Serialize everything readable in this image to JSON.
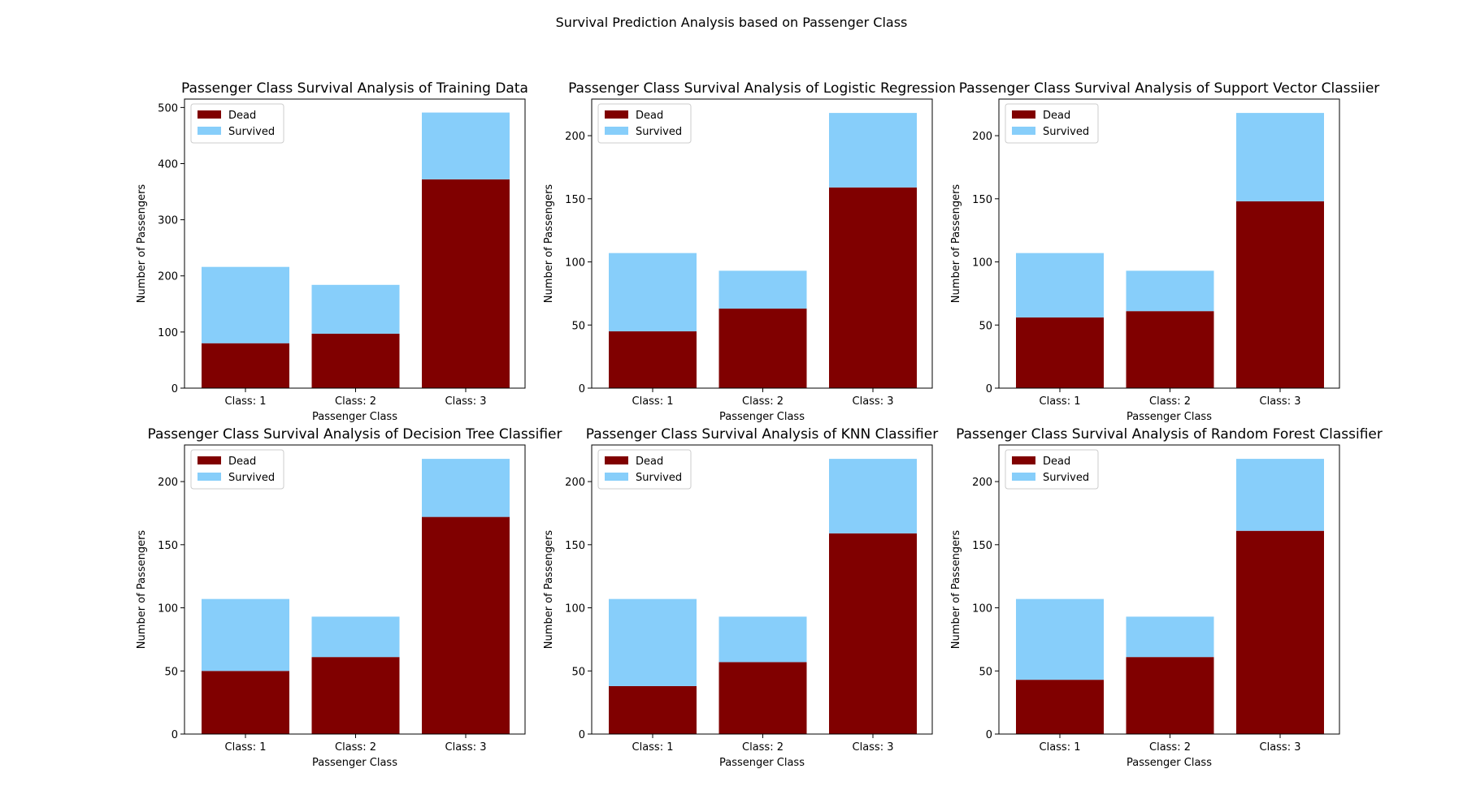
{
  "figure": {
    "suptitle": "Survival Prediction Analysis based on Passenger Class"
  },
  "colors": {
    "dead": "#800000",
    "survived": "#87CEFA",
    "axis": "#000000"
  },
  "chart_data": [
    {
      "type": "bar",
      "stacked": true,
      "title": "Passenger Class Survival Analysis of Training Data",
      "xlabel": "Passenger Class",
      "ylabel": "Number of Passengers",
      "categories": [
        "Class: 1",
        "Class: 2",
        "Class: 3"
      ],
      "series": [
        {
          "name": "Dead",
          "values": [
            80,
            97,
            372
          ]
        },
        {
          "name": "Survived",
          "values": [
            136,
            87,
            119
          ]
        }
      ],
      "ylim": [
        0,
        515
      ],
      "yticks": [
        0,
        100,
        200,
        300,
        400,
        500
      ],
      "legend": "top-left",
      "grid": false
    },
    {
      "type": "bar",
      "stacked": true,
      "title": "Passenger Class Survival Analysis of Logistic Regression",
      "xlabel": "Passenger Class",
      "ylabel": "Number of Passengers",
      "categories": [
        "Class: 1",
        "Class: 2",
        "Class: 3"
      ],
      "series": [
        {
          "name": "Dead",
          "values": [
            45,
            63,
            159
          ]
        },
        {
          "name": "Survived",
          "values": [
            62,
            30,
            59
          ]
        }
      ],
      "ylim": [
        0,
        229
      ],
      "yticks": [
        0,
        50,
        100,
        150,
        200
      ],
      "legend": "top-left",
      "grid": false
    },
    {
      "type": "bar",
      "stacked": true,
      "title": "Passenger Class Survival Analysis of Support Vector Classiier",
      "xlabel": "Passenger Class",
      "ylabel": "Number of Passengers",
      "categories": [
        "Class: 1",
        "Class: 2",
        "Class: 3"
      ],
      "series": [
        {
          "name": "Dead",
          "values": [
            56,
            61,
            148
          ]
        },
        {
          "name": "Survived",
          "values": [
            51,
            32,
            70
          ]
        }
      ],
      "ylim": [
        0,
        229
      ],
      "yticks": [
        0,
        50,
        100,
        150,
        200
      ],
      "legend": "top-left",
      "grid": false
    },
    {
      "type": "bar",
      "stacked": true,
      "title": "Passenger Class Survival Analysis of Decision Tree Classifier",
      "xlabel": "Passenger Class",
      "ylabel": "Number of Passengers",
      "categories": [
        "Class: 1",
        "Class: 2",
        "Class: 3"
      ],
      "series": [
        {
          "name": "Dead",
          "values": [
            50,
            61,
            172
          ]
        },
        {
          "name": "Survived",
          "values": [
            57,
            32,
            46
          ]
        }
      ],
      "ylim": [
        0,
        229
      ],
      "yticks": [
        0,
        50,
        100,
        150,
        200
      ],
      "legend": "top-left",
      "grid": false
    },
    {
      "type": "bar",
      "stacked": true,
      "title": "Passenger Class Survival Analysis of KNN Classifier",
      "xlabel": "Passenger Class",
      "ylabel": "Number of Passengers",
      "categories": [
        "Class: 1",
        "Class: 2",
        "Class: 3"
      ],
      "series": [
        {
          "name": "Dead",
          "values": [
            38,
            57,
            159
          ]
        },
        {
          "name": "Survived",
          "values": [
            69,
            36,
            59
          ]
        }
      ],
      "ylim": [
        0,
        229
      ],
      "yticks": [
        0,
        50,
        100,
        150,
        200
      ],
      "legend": "top-left",
      "grid": false
    },
    {
      "type": "bar",
      "stacked": true,
      "title": "Passenger Class Survival Analysis of Random Forest Classifier",
      "xlabel": "Passenger Class",
      "ylabel": "Number of Passengers",
      "categories": [
        "Class: 1",
        "Class: 2",
        "Class: 3"
      ],
      "series": [
        {
          "name": "Dead",
          "values": [
            43,
            61,
            161
          ]
        },
        {
          "name": "Survived",
          "values": [
            64,
            32,
            57
          ]
        }
      ],
      "ylim": [
        0,
        229
      ],
      "yticks": [
        0,
        50,
        100,
        150,
        200
      ],
      "legend": "top-left",
      "grid": false
    }
  ]
}
